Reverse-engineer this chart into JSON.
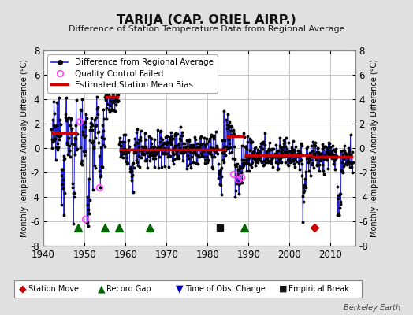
{
  "title": "TARIJA (CAP. ORIEL AIRP.)",
  "subtitle": "Difference of Station Temperature Data from Regional Average",
  "ylabel": "Monthly Temperature Anomaly Difference (°C)",
  "xlabel_years": [
    1940,
    1950,
    1960,
    1970,
    1980,
    1990,
    2000,
    2010
  ],
  "ylim": [
    -8,
    8
  ],
  "xlim": [
    1940,
    2016
  ],
  "bg_color": "#e0e0e0",
  "plot_bg_color": "#ffffff",
  "grid_color": "#b0b0b0",
  "line_color": "#2222cc",
  "dot_color": "#000000",
  "bias_color": "#cc0000",
  "qc_color": "#ff44ff",
  "station_move_color": "#cc0000",
  "record_gap_color": "#006600",
  "time_obs_color": "#0000cc",
  "empirical_break_color": "#111111",
  "segments": [
    {
      "x_start": 1942.0,
      "x_end": 1948.3,
      "bias": 1.2
    },
    {
      "x_start": 1955.0,
      "x_end": 1958.5,
      "bias": 4.2
    },
    {
      "x_start": 1958.5,
      "x_end": 1984.5,
      "bias": -0.1
    },
    {
      "x_start": 1984.5,
      "x_end": 1989.0,
      "bias": 1.0
    },
    {
      "x_start": 1989.0,
      "x_end": 2005.5,
      "bias": -0.55
    },
    {
      "x_start": 2005.5,
      "x_end": 2015.5,
      "bias": -0.7
    }
  ],
  "record_gaps": [
    1948.5,
    1955.0,
    1958.5,
    1966.0,
    1989.0
  ],
  "station_moves": [
    2006.0
  ],
  "time_obs_changes": [],
  "empirical_breaks": [
    1983.0
  ],
  "berkeley_earth_text": "Berkeley Earth",
  "seed": 42
}
